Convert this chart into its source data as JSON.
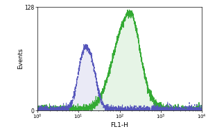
{
  "title": "",
  "xlabel": "FL1-H",
  "ylabel": "Events",
  "xlim_log": [
    0,
    4
  ],
  "ylim": [
    0,
    128
  ],
  "ytick_top": 128,
  "background_color": "#ffffff",
  "blue_color": "#5555bb",
  "green_color": "#33aa33",
  "blue_peak_log": 1.2,
  "blue_sigma_log": 0.18,
  "blue_amplitude": 75,
  "green_peak_log": 2.15,
  "green_sigma_log": 0.32,
  "green_amplitude": 105,
  "noise_amplitude": 2.5,
  "baseline": 1.0,
  "figsize": [
    3.0,
    2.0
  ],
  "dpi": 100
}
